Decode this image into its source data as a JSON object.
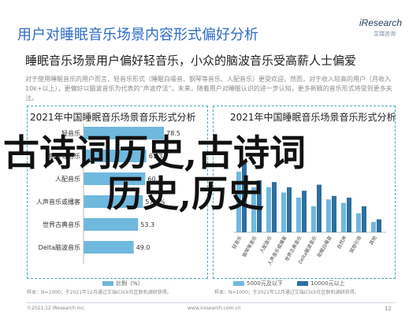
{
  "header": {
    "title": "用户对睡眠音乐场景内容形式偏好分析",
    "subtitle": "睡眠音乐场景用户偏好轻音乐，小众的脑波音乐受高薪人士偏爱",
    "logo": {
      "brand": "iResearch",
      "sub": "艾瑞咨询"
    }
  },
  "body_text": "对于使用睡眠音乐的用户而言，轻音乐形式（睡眠白噪音、钢琴等音乐、人配音乐）更受欢迎，然而，对于收入较高的用户（月收入10k+以上），更偏好以脑波音乐为代表的“声波疗法”。未来，随着用户对睡眠认识的进一步认知，更多新颖的音乐形式将受到更多关注。",
  "overlay_text": {
    "line1": "古诗词历史,古诗词",
    "line2": "历史,历史"
  },
  "colors": {
    "bar": "#6fb8de",
    "bar_alt": "#2f6f9e",
    "accent": "#2e6bc6"
  },
  "chart_data": [
    {
      "type": "bar",
      "title": "2021年中国睡眠音乐场景音乐形式分析",
      "categories": [
        "轻音乐",
        "钢琴等音乐",
        "人配音乐",
        "人声音乐或播客",
        "世界古典音乐",
        "Delta脑波音乐"
      ],
      "values": [
        78.5,
        61.3,
        60.3,
        57.9,
        53.3,
        49.0
      ],
      "value_labels": [
        "78.5",
        "61.3",
        "60.3",
        "57.9%",
        "53.3",
        "49.0"
      ],
      "legend": "比例（%）",
      "footnote": "样本：N=1000；于2021年12月通过艾瑞iClick社区联机调研获得。"
    },
    {
      "type": "bar",
      "title": "2021年中国睡眠音乐场景音乐形式分析",
      "subtitle": "",
      "categories": [
        "轻音乐",
        "钢琴等音乐",
        "人配音乐",
        "人声音乐或播客",
        "世界古典音乐",
        "Delta脑波音乐",
        "助眠白噪音",
        "自然声",
        "冥想引导",
        "其他"
      ],
      "series": [
        {
          "name": "5000元及以下",
          "values": [
            70,
            52,
            52,
            46,
            40,
            30,
            38,
            34,
            22,
            12
          ]
        },
        {
          "name": "10000元以上",
          "values": [
            82,
            60,
            58,
            52,
            48,
            55,
            42,
            40,
            30,
            15
          ]
        }
      ],
      "legend": [
        "5000元及以下",
        "10000元以上"
      ],
      "footnote": "样本：N=1000；于2021年12月通过艾瑞iClick社区联机调研获得。"
    }
  ],
  "footer": {
    "source": "©2021.12 iResearch Inc.",
    "url": "www.iresearch.com.cn",
    "page": "12"
  }
}
